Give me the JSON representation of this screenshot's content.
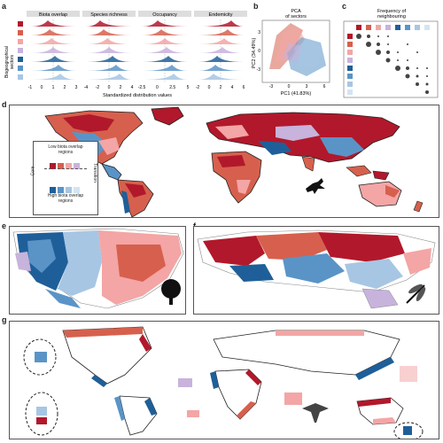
{
  "panels": {
    "a": {
      "label": "a",
      "facets": [
        "Biota overlap",
        "Species richness",
        "Occupancy",
        "Endemicity"
      ],
      "ylabel_line1": "Biogeographical",
      "ylabel_line2": "sectors",
      "xlabel": "Standardized distribution values",
      "ticks": [
        [
          "-1",
          "0",
          "1",
          "2",
          "3"
        ],
        [
          "-4",
          "-2",
          "0",
          "2",
          "4"
        ],
        [
          "-2.5",
          "0",
          "2.5",
          "5"
        ],
        [
          "-2",
          "0",
          "2",
          "4",
          "6"
        ]
      ]
    },
    "b": {
      "label": "b",
      "title_line1": "PCA",
      "title_line2": "of sectors",
      "xlabel": "PC1 (41.83%)",
      "ylabel": "PC2 (34.49%)",
      "xticks": [
        "-3",
        "0",
        "3",
        "6"
      ],
      "yticks": [
        "3",
        "0",
        "-3"
      ]
    },
    "c": {
      "label": "c",
      "title_line1": "Frequency of",
      "title_line2": "neighbouring"
    },
    "d": {
      "label": "d",
      "legend_low_line1": "Low biota overlap",
      "legend_low_line2": "regions",
      "legend_high_line1": "High biota overlap",
      "legend_high_line2": "regions",
      "legend_core": "Core",
      "legend_transition": "Transition"
    },
    "e": {
      "label": "e"
    },
    "f": {
      "label": "f"
    },
    "g": {
      "label": "g"
    }
  },
  "colors": {
    "red_dark": "#b2182b",
    "red_mid": "#d6604d",
    "red_light": "#f4a5a5",
    "pink": "#f9d0d0",
    "lavender": "#c7b3dc",
    "blue_dark": "#1f5f99",
    "blue_mid": "#5a94c7",
    "blue_light": "#a7c6e3",
    "blue_pale": "#d4e4f2"
  },
  "icons": {
    "d": "bird-silhouette-icon",
    "e": "tree-silhouette-icon",
    "f": "dragonfly-silhouette-icon",
    "g": "manta-ray-silhouette-icon"
  }
}
